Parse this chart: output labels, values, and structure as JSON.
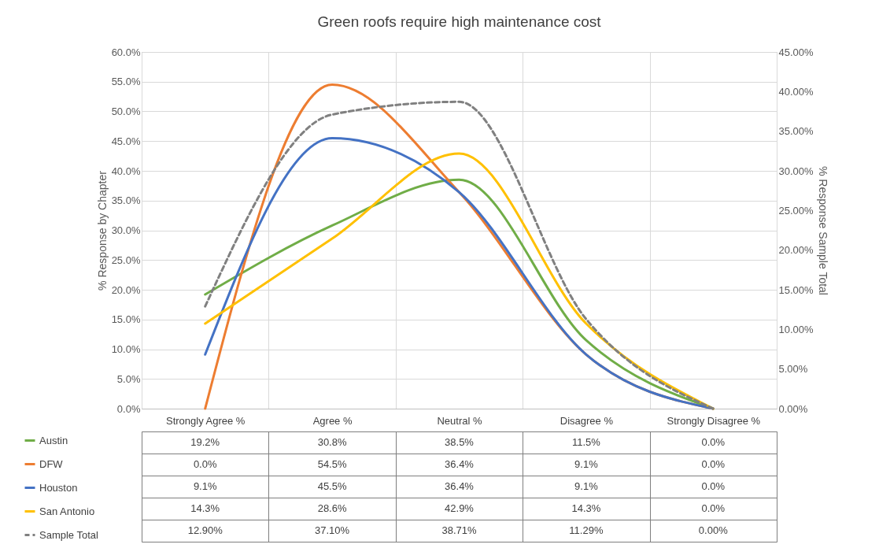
{
  "chart_data": {
    "type": "line",
    "title": "Green roofs require high maintenance cost",
    "ylabel": "% Response by Chapter",
    "y2label": "% Response Sample Total",
    "categories": [
      "Strongly Agree %",
      "Agree %",
      "Neutral %",
      "Disagree %",
      "Strongly Disagree %"
    ],
    "series": [
      {
        "name": "Austin",
        "color": "#70ad47",
        "values": [
          19.2,
          30.8,
          38.5,
          11.5,
          0.0
        ],
        "value_labels": [
          "19.2%",
          "30.8%",
          "38.5%",
          "11.5%",
          "0.0%"
        ]
      },
      {
        "name": "DFW",
        "color": "#ed7d31",
        "values": [
          0.0,
          54.5,
          36.4,
          9.1,
          0.0
        ],
        "value_labels": [
          "0.0%",
          "54.5%",
          "36.4%",
          "9.1%",
          "0.0%"
        ]
      },
      {
        "name": "Houston",
        "color": "#4472c4",
        "values": [
          9.1,
          45.5,
          36.4,
          9.1,
          0.0
        ],
        "value_labels": [
          "9.1%",
          "45.5%",
          "36.4%",
          "9.1%",
          "0.0%"
        ]
      },
      {
        "name": "San Antonio",
        "color": "#ffc000",
        "values": [
          14.3,
          28.6,
          42.9,
          14.3,
          0.0
        ],
        "value_labels": [
          "14.3%",
          "28.6%",
          "42.9%",
          "14.3%",
          "0.0%"
        ]
      },
      {
        "name": "Sample Total",
        "color": "#808080",
        "axis": "y2",
        "line_style": "dashed",
        "values": [
          12.9,
          37.1,
          38.71,
          11.29,
          0.0
        ],
        "value_labels": [
          "12.90%",
          "37.10%",
          "38.71%",
          "11.29%",
          "0.00%"
        ]
      }
    ],
    "ylim": [
      0,
      60
    ],
    "yticks": [
      {
        "value": 0,
        "label": "0.0%"
      },
      {
        "value": 5,
        "label": "5.0%"
      },
      {
        "value": 10,
        "label": "10.0%"
      },
      {
        "value": 15,
        "label": "15.0%"
      },
      {
        "value": 20,
        "label": "20.0%"
      },
      {
        "value": 25,
        "label": "25.0%"
      },
      {
        "value": 30,
        "label": "30.0%"
      },
      {
        "value": 35,
        "label": "35.0%"
      },
      {
        "value": 40,
        "label": "40.0%"
      },
      {
        "value": 45,
        "label": "45.0%"
      },
      {
        "value": 50,
        "label": "50.0%"
      },
      {
        "value": 55,
        "label": "55.0%"
      },
      {
        "value": 60,
        "label": "60.0%"
      }
    ],
    "y2lim": [
      0,
      45
    ],
    "y2ticks": [
      {
        "value": 0,
        "label": "0.00%"
      },
      {
        "value": 5,
        "label": "5.00%"
      },
      {
        "value": 10,
        "label": "10.00%"
      },
      {
        "value": 15,
        "label": "15.00%"
      },
      {
        "value": 20,
        "label": "20.00%"
      },
      {
        "value": 25,
        "label": "25.00%"
      },
      {
        "value": 30,
        "label": "30.00%"
      },
      {
        "value": 35,
        "label": "35.00%"
      },
      {
        "value": 40,
        "label": "40.00%"
      },
      {
        "value": 45,
        "label": "45.00%"
      }
    ],
    "grid": true,
    "legend": "bottom left"
  }
}
